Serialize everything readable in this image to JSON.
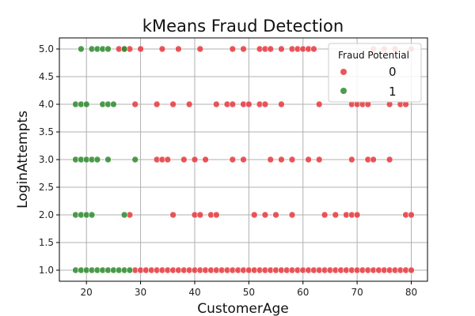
{
  "chart_data": {
    "type": "scatter",
    "title": "kMeans Fraud Detection",
    "xlabel": "CustomerAge",
    "ylabel": "LoginAttempts",
    "xlim": [
      15,
      83
    ],
    "ylim": [
      0.8,
      5.2
    ],
    "xticks": [
      "20",
      "30",
      "40",
      "50",
      "60",
      "70",
      "80"
    ],
    "yticks": [
      "1.0",
      "1.5",
      "2.0",
      "2.5",
      "3.0",
      "3.5",
      "4.0",
      "4.5",
      "5.0"
    ],
    "grid": true,
    "legend": {
      "title": "Fraud Potential",
      "placement": "top-right"
    },
    "series": [
      {
        "name": "0",
        "color": "#e8383d",
        "points": [
          [
            26,
            5
          ],
          [
            27,
            5
          ],
          [
            28,
            5
          ],
          [
            30,
            5
          ],
          [
            34,
            5
          ],
          [
            37,
            5
          ],
          [
            41,
            5
          ],
          [
            47,
            5
          ],
          [
            49,
            5
          ],
          [
            52,
            5
          ],
          [
            53,
            5
          ],
          [
            54,
            5
          ],
          [
            56,
            5
          ],
          [
            58,
            5
          ],
          [
            59,
            5
          ],
          [
            60,
            5
          ],
          [
            61,
            5
          ],
          [
            62,
            5
          ],
          [
            73,
            5
          ],
          [
            75,
            5
          ],
          [
            77,
            5
          ],
          [
            80,
            5
          ],
          [
            29,
            4
          ],
          [
            33,
            4
          ],
          [
            36,
            4
          ],
          [
            39,
            4
          ],
          [
            44,
            4
          ],
          [
            46,
            4
          ],
          [
            47,
            4
          ],
          [
            49,
            4
          ],
          [
            50,
            4
          ],
          [
            52,
            4
          ],
          [
            53,
            4
          ],
          [
            56,
            4
          ],
          [
            63,
            4
          ],
          [
            69,
            4
          ],
          [
            70,
            4
          ],
          [
            71,
            4
          ],
          [
            72,
            4
          ],
          [
            76,
            4
          ],
          [
            78,
            4
          ],
          [
            79,
            4
          ],
          [
            33,
            3
          ],
          [
            34,
            3
          ],
          [
            35,
            3
          ],
          [
            38,
            3
          ],
          [
            40,
            3
          ],
          [
            42,
            3
          ],
          [
            47,
            3
          ],
          [
            49,
            3
          ],
          [
            54,
            3
          ],
          [
            56,
            3
          ],
          [
            58,
            3
          ],
          [
            61,
            3
          ],
          [
            63,
            3
          ],
          [
            69,
            3
          ],
          [
            72,
            3
          ],
          [
            73,
            3
          ],
          [
            76,
            3
          ],
          [
            28,
            2
          ],
          [
            36,
            2
          ],
          [
            40,
            2
          ],
          [
            41,
            2
          ],
          [
            43,
            2
          ],
          [
            44,
            2
          ],
          [
            51,
            2
          ],
          [
            53,
            2
          ],
          [
            55,
            2
          ],
          [
            58,
            2
          ],
          [
            64,
            2
          ],
          [
            66,
            2
          ],
          [
            68,
            2
          ],
          [
            69,
            2
          ],
          [
            70,
            2
          ],
          [
            79,
            2
          ],
          [
            80,
            2
          ],
          [
            29,
            1
          ],
          [
            30,
            1
          ],
          [
            31,
            1
          ],
          [
            32,
            1
          ],
          [
            33,
            1
          ],
          [
            34,
            1
          ],
          [
            35,
            1
          ],
          [
            36,
            1
          ],
          [
            37,
            1
          ],
          [
            38,
            1
          ],
          [
            39,
            1
          ],
          [
            40,
            1
          ],
          [
            41,
            1
          ],
          [
            42,
            1
          ],
          [
            43,
            1
          ],
          [
            44,
            1
          ],
          [
            45,
            1
          ],
          [
            46,
            1
          ],
          [
            47,
            1
          ],
          [
            48,
            1
          ],
          [
            49,
            1
          ],
          [
            50,
            1
          ],
          [
            51,
            1
          ],
          [
            52,
            1
          ],
          [
            53,
            1
          ],
          [
            54,
            1
          ],
          [
            55,
            1
          ],
          [
            56,
            1
          ],
          [
            57,
            1
          ],
          [
            58,
            1
          ],
          [
            59,
            1
          ],
          [
            60,
            1
          ],
          [
            61,
            1
          ],
          [
            62,
            1
          ],
          [
            63,
            1
          ],
          [
            64,
            1
          ],
          [
            65,
            1
          ],
          [
            66,
            1
          ],
          [
            67,
            1
          ],
          [
            68,
            1
          ],
          [
            69,
            1
          ],
          [
            70,
            1
          ],
          [
            71,
            1
          ],
          [
            72,
            1
          ],
          [
            73,
            1
          ],
          [
            74,
            1
          ],
          [
            75,
            1
          ],
          [
            76,
            1
          ],
          [
            77,
            1
          ],
          [
            78,
            1
          ],
          [
            79,
            1
          ],
          [
            80,
            1
          ]
        ]
      },
      {
        "name": "1",
        "color": "#2e8b2e",
        "points": [
          [
            19,
            5
          ],
          [
            21,
            5
          ],
          [
            22,
            5
          ],
          [
            23,
            5
          ],
          [
            24,
            5
          ],
          [
            27,
            5
          ],
          [
            18,
            4
          ],
          [
            19,
            4
          ],
          [
            20,
            4
          ],
          [
            23,
            4
          ],
          [
            24,
            4
          ],
          [
            25,
            4
          ],
          [
            18,
            3
          ],
          [
            19,
            3
          ],
          [
            20,
            3
          ],
          [
            21,
            3
          ],
          [
            22,
            3
          ],
          [
            24,
            3
          ],
          [
            29,
            3
          ],
          [
            18,
            2
          ],
          [
            19,
            2
          ],
          [
            20,
            2
          ],
          [
            21,
            2
          ],
          [
            27,
            2
          ],
          [
            18,
            1
          ],
          [
            19,
            1
          ],
          [
            20,
            1
          ],
          [
            21,
            1
          ],
          [
            22,
            1
          ],
          [
            23,
            1
          ],
          [
            24,
            1
          ],
          [
            25,
            1
          ],
          [
            26,
            1
          ],
          [
            27,
            1
          ],
          [
            28,
            1
          ]
        ]
      }
    ]
  }
}
